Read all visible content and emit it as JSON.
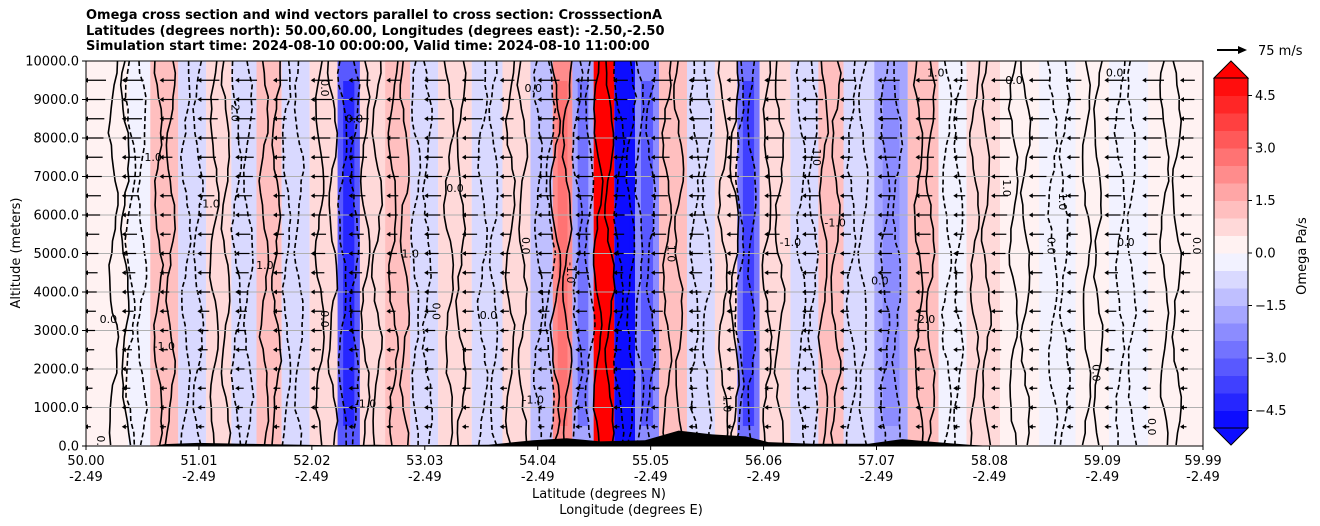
{
  "chart_data": {
    "type": "contour-cross-section",
    "title_lines": [
      "Omega cross section and wind vectors parallel to cross section: CrosssectionA",
      "Latitudes (degrees north): 50.00,60.00, Longitudes (degrees east): -2.50,-2.50",
      "Simulation start time: 2024-08-10 00:00:00, Valid time: 2024-08-10 11:00:00"
    ],
    "ylabel": "Altitude (meters)",
    "xlabel_lat": "Latitude (degrees N)",
    "xlabel_lon": "Longitude (degrees E)",
    "ylim": [
      0,
      10000
    ],
    "xlim": [
      50.0,
      59.99
    ],
    "y_ticks": [
      {
        "value": 0,
        "label": "0.0"
      },
      {
        "value": 1000,
        "label": "1000.0"
      },
      {
        "value": 2000,
        "label": "2000.0"
      },
      {
        "value": 3000,
        "label": "3000.0"
      },
      {
        "value": 4000,
        "label": "4000.0"
      },
      {
        "value": 5000,
        "label": "5000.0"
      },
      {
        "value": 6000,
        "label": "6000.0"
      },
      {
        "value": 7000,
        "label": "7000.0"
      },
      {
        "value": 8000,
        "label": "8000.0"
      },
      {
        "value": 9000,
        "label": "9000.0"
      },
      {
        "value": 10000,
        "label": "10000.0"
      }
    ],
    "x_ticks": [
      {
        "value": 50.0,
        "lat": "50.00",
        "lon": "-2.49"
      },
      {
        "value": 51.01,
        "lat": "51.01",
        "lon": "-2.49"
      },
      {
        "value": 52.02,
        "lat": "52.02",
        "lon": "-2.49"
      },
      {
        "value": 53.03,
        "lat": "53.03",
        "lon": "-2.49"
      },
      {
        "value": 54.04,
        "lat": "54.04",
        "lon": "-2.49"
      },
      {
        "value": 55.05,
        "lat": "55.05",
        "lon": "-2.49"
      },
      {
        "value": 56.06,
        "lat": "56.06",
        "lon": "-2.49"
      },
      {
        "value": 57.07,
        "lat": "57.07",
        "lon": "-2.49"
      },
      {
        "value": 58.08,
        "lat": "58.08",
        "lon": "-2.49"
      },
      {
        "value": 59.09,
        "lat": "59.09",
        "lon": "-2.49"
      },
      {
        "value": 59.99,
        "lat": "59.99",
        "lon": "-2.49"
      }
    ],
    "grid": true,
    "colorbar": {
      "label": "Omega Pa/s",
      "range": [
        -5.0,
        5.0
      ],
      "levels": 20,
      "extend": "both",
      "ticks": [
        {
          "value": 4.5,
          "label": "4.5"
        },
        {
          "value": 3.0,
          "label": "3.0"
        },
        {
          "value": 1.5,
          "label": "1.5"
        },
        {
          "value": 0.0,
          "label": "0.0"
        },
        {
          "value": -1.5,
          "label": "−1.5"
        },
        {
          "value": -3.0,
          "label": "−3.0"
        },
        {
          "value": -4.5,
          "label": "−4.5"
        }
      ]
    },
    "quiver_key": {
      "label": "75 m/s",
      "speed": 75
    },
    "omega_bands": [
      {
        "lat": 50.3,
        "omega": 0.3
      },
      {
        "lat": 50.45,
        "omega": -0.5
      },
      {
        "lat": 50.7,
        "omega": 1.0
      },
      {
        "lat": 50.95,
        "omega": -1.0
      },
      {
        "lat": 51.2,
        "omega": 0.8
      },
      {
        "lat": 51.4,
        "omega": -0.6
      },
      {
        "lat": 51.65,
        "omega": 1.2
      },
      {
        "lat": 51.85,
        "omega": -0.8
      },
      {
        "lat": 52.15,
        "omega": 0.6
      },
      {
        "lat": 52.35,
        "omega": -3.2
      },
      {
        "lat": 52.55,
        "omega": 0.5
      },
      {
        "lat": 52.8,
        "omega": 1.0
      },
      {
        "lat": 53.0,
        "omega": -0.7
      },
      {
        "lat": 53.3,
        "omega": 0.9
      },
      {
        "lat": 53.6,
        "omega": -0.8
      },
      {
        "lat": 53.85,
        "omega": 0.5
      },
      {
        "lat": 54.1,
        "omega": -1.2
      },
      {
        "lat": 54.25,
        "omega": 2.0
      },
      {
        "lat": 54.45,
        "omega": -2.0
      },
      {
        "lat": 54.63,
        "omega": 5.0
      },
      {
        "lat": 54.82,
        "omega": -5.0
      },
      {
        "lat": 55.0,
        "omega": -2.5
      },
      {
        "lat": 55.25,
        "omega": 1.2
      },
      {
        "lat": 55.5,
        "omega": -1.0
      },
      {
        "lat": 55.75,
        "omega": 0.8
      },
      {
        "lat": 55.9,
        "omega": -3.0
      },
      {
        "lat": 56.15,
        "omega": 0.6
      },
      {
        "lat": 56.45,
        "omega": -0.8
      },
      {
        "lat": 56.65,
        "omega": 1.4
      },
      {
        "lat": 56.9,
        "omega": -0.6
      },
      {
        "lat": 57.2,
        "omega": -1.8
      },
      {
        "lat": 57.5,
        "omega": 1.0
      },
      {
        "lat": 57.75,
        "omega": -0.5
      },
      {
        "lat": 58.0,
        "omega": 0.7
      },
      {
        "lat": 58.35,
        "omega": 0.3
      },
      {
        "lat": 58.7,
        "omega": -0.3
      },
      {
        "lat": 59.0,
        "omega": 0.2
      },
      {
        "lat": 59.3,
        "omega": -0.2
      },
      {
        "lat": 59.7,
        "omega": 0.3
      }
    ],
    "terrain": [
      {
        "lat": 50.0,
        "alt": 0
      },
      {
        "lat": 50.6,
        "alt": 0
      },
      {
        "lat": 50.7,
        "alt": 50
      },
      {
        "lat": 51.0,
        "alt": 80
      },
      {
        "lat": 51.4,
        "alt": 60
      },
      {
        "lat": 51.8,
        "alt": 40
      },
      {
        "lat": 52.2,
        "alt": 20
      },
      {
        "lat": 52.6,
        "alt": 30
      },
      {
        "lat": 53.0,
        "alt": 20
      },
      {
        "lat": 53.6,
        "alt": 30
      },
      {
        "lat": 54.0,
        "alt": 150
      },
      {
        "lat": 54.3,
        "alt": 200
      },
      {
        "lat": 54.6,
        "alt": 120
      },
      {
        "lat": 55.0,
        "alt": 150
      },
      {
        "lat": 55.3,
        "alt": 400
      },
      {
        "lat": 55.6,
        "alt": 300
      },
      {
        "lat": 55.9,
        "alt": 250
      },
      {
        "lat": 56.1,
        "alt": 100
      },
      {
        "lat": 56.5,
        "alt": 60
      },
      {
        "lat": 57.0,
        "alt": 60
      },
      {
        "lat": 57.3,
        "alt": 180
      },
      {
        "lat": 57.6,
        "alt": 100
      },
      {
        "lat": 57.9,
        "alt": 30
      },
      {
        "lat": 58.1,
        "alt": 0
      },
      {
        "lat": 59.99,
        "alt": 0
      }
    ],
    "contour_labels": [
      {
        "lat": 50.1,
        "alt": 50,
        "text": "0.0"
      },
      {
        "lat": 50.2,
        "alt": 3200,
        "text": "0.0"
      },
      {
        "lat": 50.7,
        "alt": 2500,
        "text": "-1.0"
      },
      {
        "lat": 50.6,
        "alt": 7400,
        "text": "1.0"
      },
      {
        "lat": 51.3,
        "alt": 8700,
        "text": "-2.0"
      },
      {
        "lat": 51.1,
        "alt": 6200,
        "text": "-1.0"
      },
      {
        "lat": 51.6,
        "alt": 4600,
        "text": "1.0"
      },
      {
        "lat": 52.1,
        "alt": 3300,
        "text": "0.0"
      },
      {
        "lat": 52.4,
        "alt": 8400,
        "text": "0.0"
      },
      {
        "lat": 52.1,
        "alt": 9300,
        "text": "0.0"
      },
      {
        "lat": 52.5,
        "alt": 1000,
        "text": "-1.0"
      },
      {
        "lat": 52.9,
        "alt": 4900,
        "text": "1.0"
      },
      {
        "lat": 53.3,
        "alt": 6600,
        "text": "0.0"
      },
      {
        "lat": 53.1,
        "alt": 3500,
        "text": "0.0"
      },
      {
        "lat": 53.6,
        "alt": 3300,
        "text": "0.0"
      },
      {
        "lat": 53.9,
        "alt": 5200,
        "text": "0.0"
      },
      {
        "lat": 54.0,
        "alt": 1100,
        "text": "-1.0"
      },
      {
        "lat": 54.3,
        "alt": 4500,
        "text": "-1.0"
      },
      {
        "lat": 54.0,
        "alt": 9200,
        "text": "0.0"
      },
      {
        "lat": 55.2,
        "alt": 5000,
        "text": "1.0"
      },
      {
        "lat": 55.7,
        "alt": 1100,
        "text": "1.0"
      },
      {
        "lat": 56.3,
        "alt": 5200,
        "text": "-1.0"
      },
      {
        "lat": 56.5,
        "alt": 7500,
        "text": "1.0"
      },
      {
        "lat": 56.7,
        "alt": 5700,
        "text": "-1.0"
      },
      {
        "lat": 57.1,
        "alt": 4200,
        "text": "0.0"
      },
      {
        "lat": 57.5,
        "alt": 3200,
        "text": "-2.0"
      },
      {
        "lat": 57.6,
        "alt": 9600,
        "text": "1.0"
      },
      {
        "lat": 58.2,
        "alt": 6700,
        "text": "1.0"
      },
      {
        "lat": 58.6,
        "alt": 5200,
        "text": "0.0"
      },
      {
        "lat": 58.7,
        "alt": 6400,
        "text": "-1.0"
      },
      {
        "lat": 59.0,
        "alt": 1900,
        "text": "0.0"
      },
      {
        "lat": 59.3,
        "alt": 5200,
        "text": "0.0"
      },
      {
        "lat": 59.5,
        "alt": 500,
        "text": "0.0"
      },
      {
        "lat": 59.9,
        "alt": 5200,
        "text": "0.0"
      },
      {
        "lat": 58.3,
        "alt": 9400,
        "text": "0.0"
      },
      {
        "lat": 59.2,
        "alt": 9600,
        "text": "0.0"
      }
    ]
  }
}
